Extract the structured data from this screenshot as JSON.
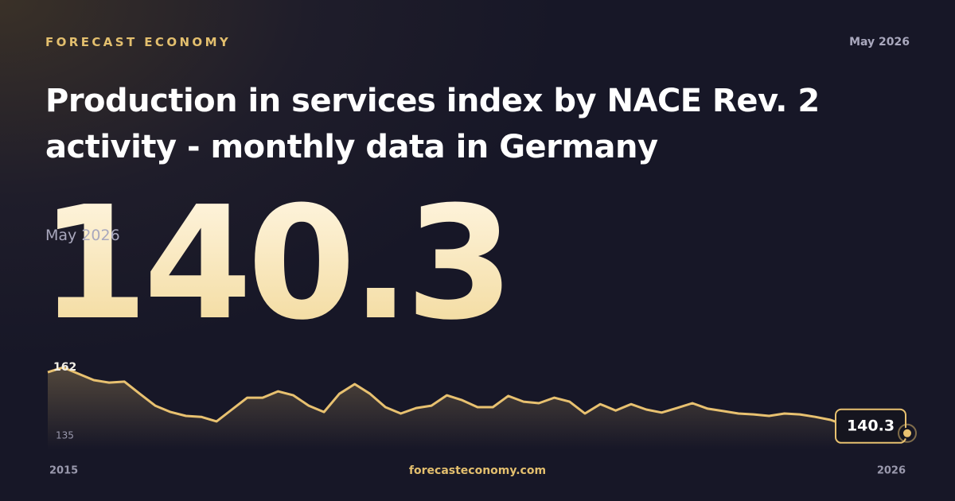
{
  "header": {
    "brand": "FORECAST ECONOMY",
    "date": "May 2026"
  },
  "title": "Production in services index by NACE Rev. 2 activity - monthly data in Germany",
  "headline": {
    "period": "May 2026",
    "value": 140.3
  },
  "chart_data": {
    "type": "line",
    "categories": [
      "2015",
      null,
      null,
      null,
      null,
      null,
      null,
      null,
      null,
      null,
      null,
      null,
      null,
      null,
      null,
      null,
      null,
      null,
      null,
      null,
      null,
      null,
      null,
      null,
      null,
      null,
      null,
      null,
      null,
      null,
      null,
      null,
      null,
      null,
      null,
      null,
      null,
      null,
      null,
      null,
      null,
      null,
      null,
      null,
      null,
      null,
      null,
      null,
      null,
      null,
      null,
      null,
      null,
      null,
      null,
      null,
      "2026"
    ],
    "series": [
      {
        "name": "Production in services index",
        "color": "#e8c170",
        "values": [
          160.4,
          162,
          159.9,
          157.8,
          157,
          157.3,
          153.3,
          149.4,
          147.3,
          146,
          145.7,
          144.2,
          148.1,
          152,
          152,
          154.1,
          152.8,
          149.4,
          147.3,
          153.3,
          156.5,
          153.3,
          148.9,
          146.8,
          148.6,
          149.4,
          152.8,
          151.2,
          148.9,
          148.9,
          152.6,
          150.7,
          150.2,
          152,
          150.7,
          146.8,
          149.9,
          147.8,
          149.9,
          148.1,
          147.1,
          148.6,
          150.2,
          148.4,
          147.6,
          146.8,
          146.5,
          146,
          146.8,
          146.5,
          145.7,
          144.7,
          142.9,
          141.5,
          141,
          140.8,
          140.3
        ]
      }
    ],
    "ylim": [
      135,
      162
    ],
    "yticks": [
      135,
      162
    ],
    "grid": false
  },
  "footer": {
    "site": "forecasteconomy.com"
  }
}
